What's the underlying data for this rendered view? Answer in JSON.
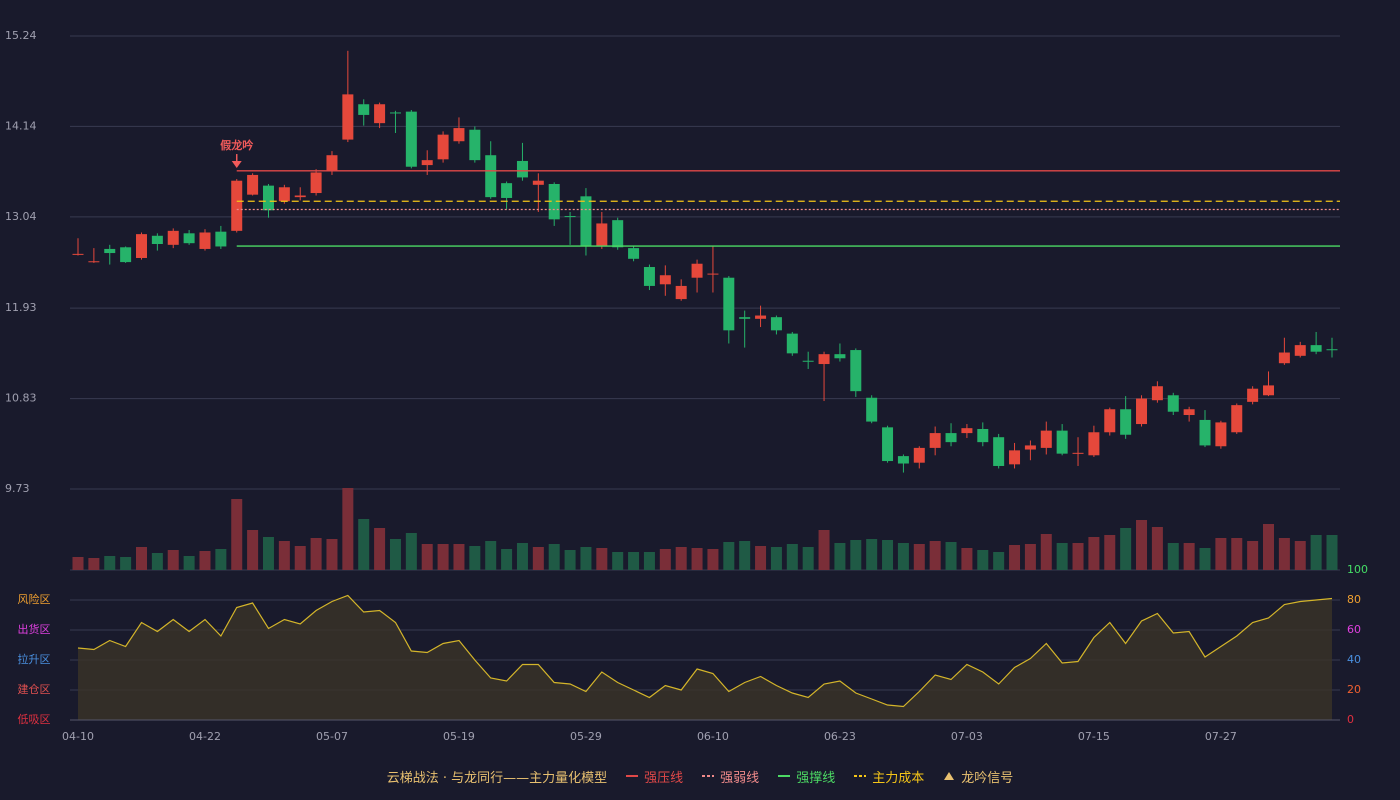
{
  "chart_data": [
    {
      "type": "candlestick",
      "categories": [
        "04-10",
        null,
        null,
        null,
        null,
        null,
        null,
        null,
        "04-22",
        null,
        null,
        null,
        null,
        null,
        null,
        null,
        "05-07",
        null,
        null,
        null,
        null,
        null,
        null,
        null,
        "05-19",
        null,
        null,
        null,
        null,
        null,
        null,
        null,
        "05-29",
        null,
        null,
        null,
        null,
        null,
        null,
        null,
        "06-10",
        null,
        null,
        null,
        null,
        null,
        null,
        null,
        "06-23",
        null,
        null,
        null,
        null,
        null,
        null,
        null,
        "07-03",
        null,
        null,
        null,
        null,
        null,
        null,
        null,
        "07-15",
        null,
        null,
        null,
        null,
        null,
        null,
        null,
        "07-27",
        null,
        null,
        null,
        null,
        null,
        null,
        null
      ],
      "open": [
        12.58,
        12.49,
        12.65,
        12.67,
        12.54,
        12.81,
        12.7,
        12.84,
        12.65,
        12.86,
        12.87,
        13.31,
        13.42,
        13.23,
        13.28,
        13.33,
        13.6,
        13.98,
        14.41,
        14.18,
        14.31,
        14.32,
        13.67,
        13.74,
        13.96,
        14.1,
        13.79,
        13.45,
        13.72,
        13.43,
        13.44,
        13.05,
        13.29,
        12.68,
        13.0,
        12.66,
        12.43,
        12.22,
        12.04,
        12.3,
        12.34,
        12.3,
        11.82,
        11.8,
        11.82,
        11.62,
        11.29,
        11.25,
        11.37,
        11.42,
        10.84,
        10.48,
        10.13,
        10.05,
        10.23,
        10.41,
        10.41,
        10.46,
        10.36,
        10.03,
        10.21,
        10.23,
        10.44,
        10.16,
        10.14,
        10.42,
        10.7,
        10.52,
        10.81,
        10.87,
        10.63,
        10.57,
        10.25,
        10.42,
        10.79,
        10.87,
        11.26,
        11.35,
        11.48,
        11.43
      ],
      "high": [
        12.78,
        12.66,
        12.7,
        12.68,
        12.85,
        12.84,
        12.9,
        12.88,
        12.89,
        12.93,
        13.5,
        13.57,
        13.44,
        13.43,
        13.4,
        13.62,
        13.84,
        15.06,
        14.47,
        14.43,
        14.33,
        14.34,
        13.85,
        14.08,
        14.25,
        14.14,
        13.96,
        13.47,
        13.94,
        13.57,
        13.46,
        13.1,
        13.39,
        13.1,
        13.03,
        12.68,
        12.46,
        12.45,
        12.28,
        12.52,
        12.69,
        12.32,
        11.9,
        11.96,
        11.84,
        11.64,
        11.4,
        11.4,
        11.5,
        11.44,
        10.87,
        10.5,
        10.15,
        10.25,
        10.49,
        10.53,
        10.52,
        10.54,
        10.4,
        10.29,
        10.32,
        10.55,
        10.52,
        10.36,
        10.5,
        10.72,
        10.86,
        10.87,
        11.04,
        10.9,
        10.73,
        10.69,
        10.56,
        10.77,
        10.98,
        11.16,
        11.57,
        11.52,
        11.64,
        11.57
      ],
      "low": [
        12.57,
        12.48,
        12.46,
        12.48,
        12.52,
        12.63,
        12.66,
        12.7,
        12.63,
        12.65,
        12.85,
        13.3,
        13.03,
        13.2,
        13.24,
        13.3,
        13.55,
        13.95,
        14.15,
        14.12,
        14.06,
        13.63,
        13.55,
        13.7,
        13.93,
        13.7,
        13.26,
        13.13,
        13.48,
        13.1,
        12.93,
        12.7,
        12.57,
        12.65,
        12.64,
        12.5,
        12.15,
        12.08,
        12.02,
        12.12,
        12.12,
        11.5,
        11.45,
        11.7,
        11.61,
        11.35,
        11.19,
        10.8,
        11.28,
        10.85,
        10.53,
        10.05,
        9.93,
        9.98,
        10.14,
        10.25,
        10.35,
        10.25,
        9.98,
        9.98,
        10.08,
        10.15,
        10.14,
        10.01,
        10.12,
        10.38,
        10.34,
        10.49,
        10.78,
        10.63,
        10.55,
        10.24,
        10.22,
        10.4,
        10.76,
        10.86,
        11.24,
        11.33,
        11.37,
        11.33
      ],
      "close": [
        12.59,
        12.5,
        12.6,
        12.49,
        12.83,
        12.71,
        12.87,
        12.72,
        12.85,
        12.68,
        13.48,
        13.55,
        13.12,
        13.4,
        13.3,
        13.58,
        13.79,
        14.53,
        14.28,
        14.41,
        14.3,
        13.65,
        13.73,
        14.04,
        14.12,
        13.73,
        13.28,
        13.27,
        13.52,
        13.48,
        13.01,
        13.04,
        12.68,
        12.96,
        12.67,
        12.53,
        12.2,
        12.33,
        12.2,
        12.47,
        12.35,
        11.66,
        11.8,
        11.84,
        11.66,
        11.38,
        11.28,
        11.37,
        11.32,
        10.92,
        10.55,
        10.07,
        10.04,
        10.23,
        10.41,
        10.3,
        10.47,
        10.3,
        10.01,
        10.2,
        10.26,
        10.44,
        10.16,
        10.17,
        10.42,
        10.7,
        10.39,
        10.83,
        10.98,
        10.67,
        10.7,
        10.26,
        10.54,
        10.75,
        10.95,
        10.99,
        11.39,
        11.48,
        11.4,
        11.42
      ],
      "up_color": "#e5483b",
      "down_color": "#26b36a",
      "ylim": [
        9.73,
        15.24
      ],
      "yticks": [
        9.73,
        10.83,
        11.93,
        13.04,
        14.14,
        15.24
      ],
      "grid": true,
      "levels": [
        {
          "name": "强压线",
          "value": 13.6,
          "color": "#e04848",
          "style": "solid"
        },
        {
          "name": "强弱线",
          "value": 13.13,
          "color": "#f08a8a",
          "style": "dotted"
        },
        {
          "name": "强撑线",
          "value": 12.685,
          "color": "#4cd964",
          "style": "solid"
        },
        {
          "name": "主力成本",
          "value": 13.23,
          "color": "#f5c518",
          "style": "dashed"
        }
      ],
      "signal": {
        "name": "龙吟信号",
        "label": "假龙吟",
        "index": 10,
        "color": "#f05a5a",
        "legend_color": "#e8c070"
      },
      "legend_title": "云梯战法 · 与龙同行——主力量化模型"
    },
    {
      "type": "bar",
      "values": [
        13,
        12,
        14,
        13,
        23,
        17,
        20,
        14,
        19,
        21,
        71,
        40,
        33,
        29,
        24,
        32,
        31,
        82,
        51,
        42,
        31,
        37,
        26,
        26,
        26,
        24,
        29,
        21,
        27,
        23,
        26,
        20,
        23,
        22,
        18,
        18,
        18,
        21,
        23,
        22,
        21,
        28,
        29,
        24,
        23,
        26,
        23,
        40,
        27,
        30,
        31,
        30,
        27,
        26,
        29,
        28,
        22,
        20,
        18,
        25,
        26,
        36,
        27,
        27,
        33,
        35,
        42,
        50,
        43,
        27,
        27,
        22,
        32,
        32,
        29,
        46,
        32,
        29,
        35,
        35
      ],
      "up_color": "#7a2e38",
      "down_color": "#1f5a45"
    },
    {
      "type": "area",
      "values": [
        48,
        47,
        53,
        49,
        65,
        59,
        67,
        59,
        67,
        56,
        75,
        78,
        61,
        67,
        64,
        73,
        79,
        83,
        72,
        73,
        65,
        46,
        45,
        51,
        53,
        40,
        28,
        26,
        37,
        37,
        25,
        24,
        19,
        32,
        25,
        20,
        15,
        23,
        20,
        34,
        31,
        19,
        25,
        29,
        23,
        18,
        15,
        24,
        26,
        18,
        14,
        10,
        9,
        19,
        30,
        27,
        37,
        32,
        24,
        35,
        41,
        51,
        38,
        39,
        55,
        65,
        51,
        66,
        71,
        58,
        59,
        42,
        49,
        56,
        65,
        68,
        77,
        79,
        80,
        81
      ],
      "color": "#d4b52a",
      "fill": "#3a3328",
      "ylim": [
        0,
        100
      ],
      "yticks": [
        0,
        20,
        40,
        60,
        80,
        100
      ],
      "ytick_colors": [
        "#e03040",
        "#f06030",
        "#4a90e0",
        "#e040e0",
        "#f0a030",
        "#44dd66"
      ],
      "zones": [
        {
          "label": "风险区",
          "value": 80,
          "color": "#f0a030"
        },
        {
          "label": "出货区",
          "value": 60,
          "color": "#e040e0"
        },
        {
          "label": "拉升区",
          "value": 40,
          "color": "#4a90e0"
        },
        {
          "label": "建仓区",
          "value": 20,
          "color": "#e05050"
        },
        {
          "label": "低吸区",
          "value": 0,
          "color": "#e03040"
        }
      ]
    }
  ]
}
